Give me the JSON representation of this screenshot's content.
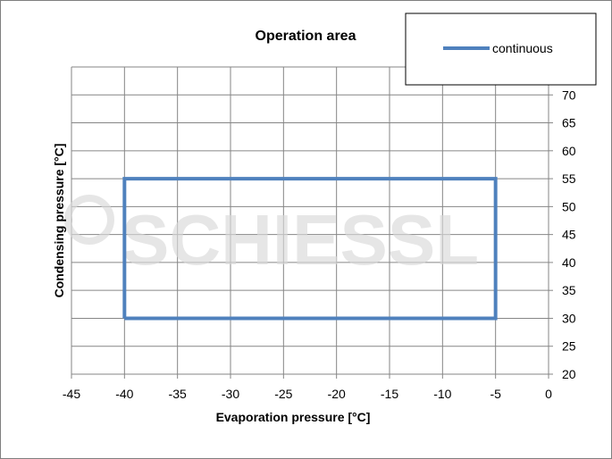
{
  "watermark": "SCHIESSL",
  "chart_data": {
    "type": "line",
    "title": "Operation area",
    "xlabel": "Evaporation pressure [°C]",
    "ylabel": "Condensing pressure [°C]",
    "xlim": [
      -45,
      0
    ],
    "ylim": [
      20,
      75
    ],
    "xticks": [
      -45,
      -40,
      -35,
      -30,
      -25,
      -20,
      -15,
      -10,
      -5,
      0
    ],
    "yticks": [
      20,
      25,
      30,
      35,
      40,
      45,
      50,
      55,
      60,
      65,
      70
    ],
    "grid": true,
    "legend_position": "top-right",
    "series": [
      {
        "name": "continuous",
        "color": "#4f81bd",
        "points": [
          [
            -40,
            30
          ],
          [
            -40,
            55
          ],
          [
            -5,
            55
          ],
          [
            -5,
            30
          ],
          [
            -40,
            30
          ]
        ]
      }
    ]
  }
}
